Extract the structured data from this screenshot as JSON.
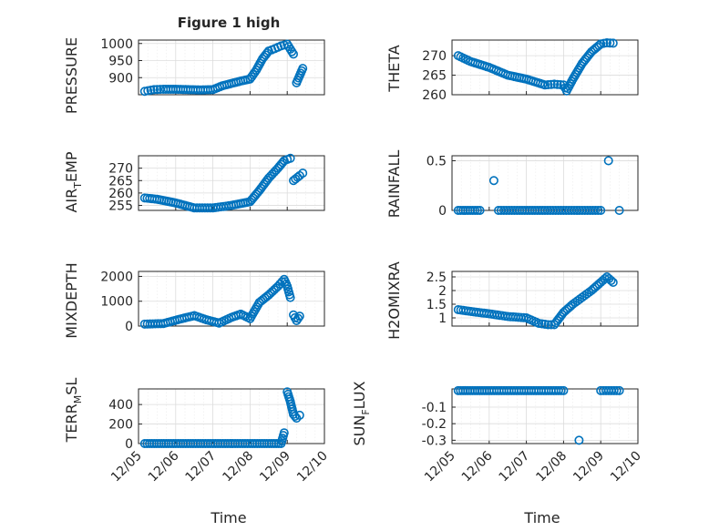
{
  "figure": {
    "title": "Figure 1 high",
    "color": "#0072bd"
  },
  "chart_data": [
    {
      "type": "scatter",
      "id": "pressure",
      "title": "Figure 1 high",
      "xlabel": "",
      "ylabel": "PRESSURE",
      "xlim": [
        "12/05",
        "12/10"
      ],
      "ylim": [
        850,
        1010
      ],
      "yticks": [
        900,
        950,
        1000
      ],
      "x": [
        "12/05 04:00",
        "12/05 10:00",
        "12/05 16:00",
        "12/06 00:00",
        "12/06 08:00",
        "12/06 16:00",
        "12/07 00:00",
        "12/07 06:00",
        "12/07 12:00",
        "12/07 18:00",
        "12/08 00:00",
        "12/08 04:00",
        "12/08 08:00",
        "12/08 12:00",
        "12/08 16:00",
        "12/08 20:00",
        "12/09 00:00",
        "12/09 04:00",
        "12/09 06:00",
        "12/09 08:00",
        "12/09 10:00"
      ],
      "y": [
        860,
        865,
        866,
        866,
        865,
        864,
        865,
        876,
        883,
        890,
        896,
        922,
        955,
        978,
        985,
        993,
        998,
        969,
        885,
        906,
        927
      ]
    },
    {
      "type": "scatter",
      "id": "theta",
      "xlabel": "",
      "ylabel": "THETA",
      "xlim": [
        "12/05",
        "12/10"
      ],
      "ylim": [
        260,
        274
      ],
      "yticks": [
        260,
        265,
        270
      ],
      "x": [
        "12/05 04:00",
        "12/05 12:00",
        "12/06 00:00",
        "12/06 12:00",
        "12/07 00:00",
        "12/07 12:00",
        "12/07 18:00",
        "12/08 00:00",
        "12/08 02:00",
        "12/08 06:00",
        "12/08 12:00",
        "12/08 18:00",
        "12/09 00:00",
        "12/09 04:00",
        "12/09 08:00"
      ],
      "y": [
        270,
        268.5,
        267,
        265,
        264,
        262.5,
        262.7,
        262.5,
        261,
        264,
        268,
        271,
        273,
        273.3,
        273.2
      ]
    },
    {
      "type": "scatter",
      "id": "air_temp",
      "xlabel": "",
      "ylabel": "AIR_TEMP",
      "xlim": [
        "12/05",
        "12/10"
      ],
      "ylim": [
        253,
        275
      ],
      "yticks": [
        255,
        260,
        265,
        270
      ],
      "x": [
        "12/05 04:00",
        "12/05 12:00",
        "12/06 00:00",
        "12/06 12:00",
        "12/07 00:00",
        "12/07 12:00",
        "12/08 00:00",
        "12/08 06:00",
        "12/08 12:00",
        "12/08 18:00",
        "12/08 22:00",
        "12/09 02:00",
        "12/09 04:00",
        "12/09 08:00",
        "12/09 10:00"
      ],
      "y": [
        258,
        257.5,
        256,
        254,
        254,
        255,
        256.5,
        261,
        266,
        270,
        273,
        274,
        265,
        267,
        268
      ]
    },
    {
      "type": "scatter",
      "id": "rainfall",
      "xlabel": "",
      "ylabel": "RAINFALL",
      "xlim": [
        "12/05",
        "12/10"
      ],
      "ylim": [
        0,
        0.55
      ],
      "yticks": [
        0,
        0.5
      ],
      "x": [
        "12/05 04:00",
        "12/05 18:00",
        "12/06 03:00",
        "12/06 06:00",
        "12/06 18:00",
        "12/07 12:00",
        "12/08 00:00",
        "12/08 12:00",
        "12/09 00:00",
        "12/09 05:00",
        "12/09 12:00"
      ],
      "y": [
        0,
        0,
        0.3,
        0,
        0,
        0,
        0,
        0,
        0,
        0.5,
        0
      ]
    },
    {
      "type": "scatter",
      "id": "mixdepth",
      "xlabel": "",
      "ylabel": "MIXDEPTH",
      "xlim": [
        "12/05",
        "12/10"
      ],
      "ylim": [
        0,
        2200
      ],
      "yticks": [
        0,
        1000,
        2000
      ],
      "x": [
        "12/05 04:00",
        "12/05 16:00",
        "12/06 04:00",
        "12/06 12:00",
        "12/06 20:00",
        "12/07 04:00",
        "12/07 12:00",
        "12/07 18:00",
        "12/08 00:00",
        "12/08 06:00",
        "12/08 12:00",
        "12/08 18:00",
        "12/08 22:00",
        "12/09 00:00",
        "12/09 02:00",
        "12/09 04:00",
        "12/09 06:00",
        "12/09 08:00"
      ],
      "y": [
        80,
        100,
        300,
        420,
        250,
        120,
        350,
        480,
        300,
        950,
        1250,
        1600,
        1880,
        1600,
        1150,
        450,
        220,
        400
      ]
    },
    {
      "type": "scatter",
      "id": "h2omixra",
      "xlabel": "",
      "ylabel": "H2OMIXRA",
      "xlim": [
        "12/05",
        "12/10"
      ],
      "ylim": [
        0.7,
        2.7
      ],
      "yticks": [
        1,
        1.5,
        2,
        2.5
      ],
      "x": [
        "12/05 04:00",
        "12/05 14:00",
        "12/06 00:00",
        "12/06 12:00",
        "12/07 00:00",
        "12/07 08:00",
        "12/07 14:00",
        "12/07 18:00",
        "12/08 00:00",
        "12/08 06:00",
        "12/08 12:00",
        "12/08 18:00",
        "12/09 00:00",
        "12/09 04:00",
        "12/09 08:00"
      ],
      "y": [
        1.3,
        1.22,
        1.15,
        1.05,
        1.0,
        0.8,
        0.75,
        0.75,
        1.2,
        1.5,
        1.75,
        2.0,
        2.3,
        2.5,
        2.3
      ]
    },
    {
      "type": "scatter",
      "id": "terr_msl",
      "xlabel": "",
      "ylabel": "TERR_MSL",
      "xlim": [
        "12/05",
        "12/10"
      ],
      "ylim": [
        0,
        560
      ],
      "yticks": [
        0,
        200,
        400
      ],
      "x": [
        "12/05 04:00",
        "12/06 00:00",
        "12/07 00:00",
        "12/08 00:00",
        "12/08 20:00",
        "12/08 22:00",
        "12/09 00:00",
        "12/09 02:00",
        "12/09 04:00",
        "12/09 06:00",
        "12/09 08:00"
      ],
      "y": [
        0,
        0,
        0,
        0,
        0,
        110,
        530,
        430,
        300,
        260,
        290
      ]
    },
    {
      "type": "scatter",
      "id": "sun_flux",
      "xlabel": "Time",
      "ylabel": "SUN_FLUX",
      "xlim": [
        "12/05",
        "12/10"
      ],
      "ylim": [
        -0.32,
        0.01
      ],
      "yticks": [
        -0.1,
        -0.2,
        -0.3
      ],
      "x": [
        "12/05 04:00",
        "12/06 00:00",
        "12/07 00:00",
        "12/08 00:00",
        "12/08 10:00",
        "12/09 00:00",
        "12/09 12:00"
      ],
      "y": [
        0,
        0,
        0,
        0,
        -0.3,
        0,
        0
      ]
    }
  ],
  "axes_text": {
    "xticks": [
      "12/05",
      "12/06",
      "12/07",
      "12/08",
      "12/09",
      "12/10"
    ],
    "xlabel": "Time",
    "ylabels": {
      "pressure": "PRESSURE",
      "theta": "THETA",
      "air_temp_main": "AIR",
      "air_temp_sub": "T",
      "air_temp_tail": "EMP",
      "rainfall": "RAINFALL",
      "mixdepth": "MIXDEPTH",
      "h2omixra": "H2OMIXRA",
      "terr_main": "TERR",
      "terr_sub": "M",
      "terr_tail": "SL",
      "sun_main": "SUN",
      "sun_sub": "F",
      "sun_tail": "LUX"
    }
  }
}
